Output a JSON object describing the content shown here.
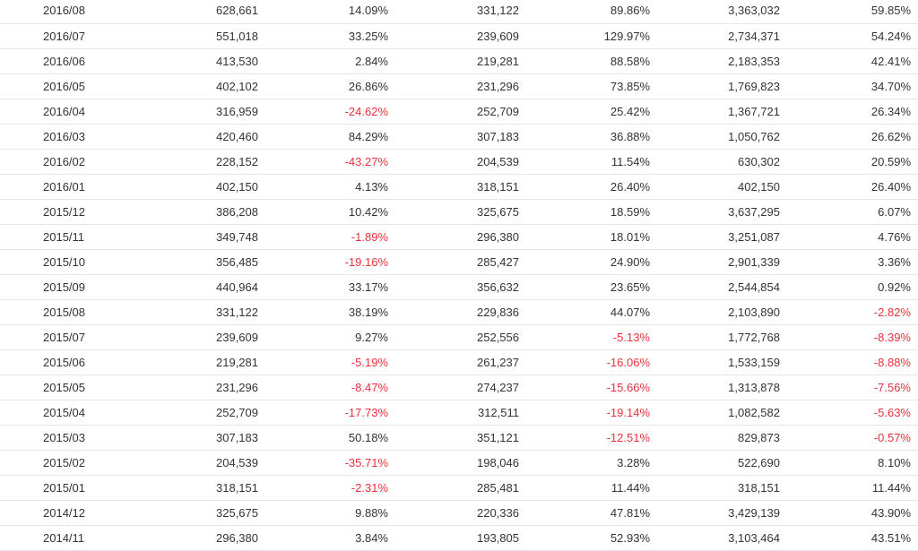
{
  "colors": {
    "text": "#333333",
    "negative": "#e8323c",
    "row_border": "#e4e4e4"
  },
  "rows": [
    [
      "2016/08",
      "628,661",
      "14.09%",
      "331,122",
      "89.86%",
      "3,363,032",
      "59.85%"
    ],
    [
      "2016/07",
      "551,018",
      "33.25%",
      "239,609",
      "129.97%",
      "2,734,371",
      "54.24%"
    ],
    [
      "2016/06",
      "413,530",
      "2.84%",
      "219,281",
      "88.58%",
      "2,183,353",
      "42.41%"
    ],
    [
      "2016/05",
      "402,102",
      "26.86%",
      "231,296",
      "73.85%",
      "1,769,823",
      "34.70%"
    ],
    [
      "2016/04",
      "316,959",
      "-24.62%",
      "252,709",
      "25.42%",
      "1,367,721",
      "26.34%"
    ],
    [
      "2016/03",
      "420,460",
      "84.29%",
      "307,183",
      "36.88%",
      "1,050,762",
      "26.62%"
    ],
    [
      "2016/02",
      "228,152",
      "-43.27%",
      "204,539",
      "11.54%",
      "630,302",
      "20.59%"
    ],
    [
      "2016/01",
      "402,150",
      "4.13%",
      "318,151",
      "26.40%",
      "402,150",
      "26.40%"
    ],
    [
      "2015/12",
      "386,208",
      "10.42%",
      "325,675",
      "18.59%",
      "3,637,295",
      "6.07%"
    ],
    [
      "2015/11",
      "349,748",
      "-1.89%",
      "296,380",
      "18.01%",
      "3,251,087",
      "4.76%"
    ],
    [
      "2015/10",
      "356,485",
      "-19.16%",
      "285,427",
      "24.90%",
      "2,901,339",
      "3.36%"
    ],
    [
      "2015/09",
      "440,964",
      "33.17%",
      "356,632",
      "23.65%",
      "2,544,854",
      "0.92%"
    ],
    [
      "2015/08",
      "331,122",
      "38.19%",
      "229,836",
      "44.07%",
      "2,103,890",
      "-2.82%"
    ],
    [
      "2015/07",
      "239,609",
      "9.27%",
      "252,556",
      "-5.13%",
      "1,772,768",
      "-8.39%"
    ],
    [
      "2015/06",
      "219,281",
      "-5.19%",
      "261,237",
      "-16.06%",
      "1,533,159",
      "-8.88%"
    ],
    [
      "2015/05",
      "231,296",
      "-8.47%",
      "274,237",
      "-15.66%",
      "1,313,878",
      "-7.56%"
    ],
    [
      "2015/04",
      "252,709",
      "-17.73%",
      "312,511",
      "-19.14%",
      "1,082,582",
      "-5.63%"
    ],
    [
      "2015/03",
      "307,183",
      "50.18%",
      "351,121",
      "-12.51%",
      "829,873",
      "-0.57%"
    ],
    [
      "2015/02",
      "204,539",
      "-35.71%",
      "198,046",
      "3.28%",
      "522,690",
      "8.10%"
    ],
    [
      "2015/01",
      "318,151",
      "-2.31%",
      "285,481",
      "11.44%",
      "318,151",
      "11.44%"
    ],
    [
      "2014/12",
      "325,675",
      "9.88%",
      "220,336",
      "47.81%",
      "3,429,139",
      "43.90%"
    ],
    [
      "2014/11",
      "296,380",
      "3.84%",
      "193,805",
      "52.93%",
      "3,103,464",
      "43.51%"
    ]
  ]
}
